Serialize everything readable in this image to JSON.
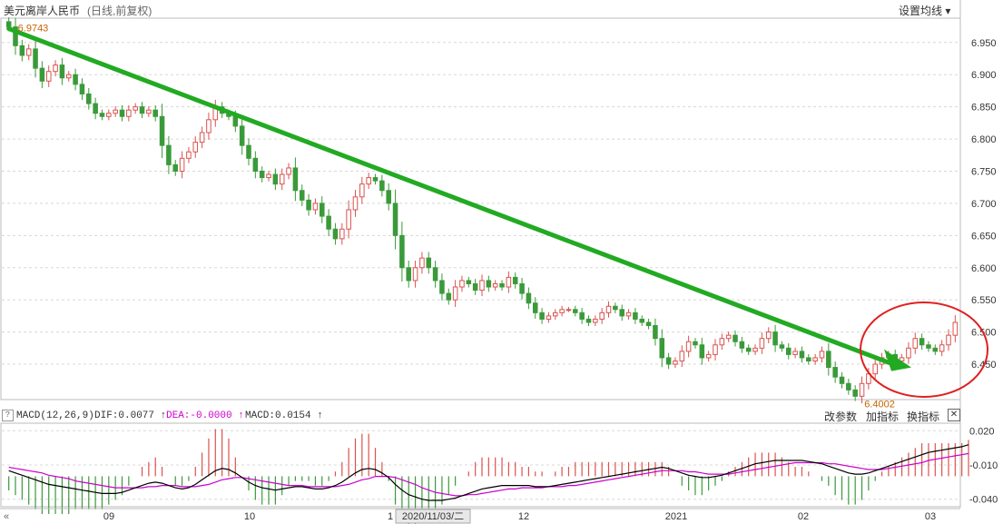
{
  "header": {
    "title": "美元离岸人民币",
    "subtitle": "(日线,前复权)",
    "ma_setting": "设置均线 ▾"
  },
  "macd_bar": {
    "help": "?",
    "label": "MACD(12,26,9)",
    "dif": "DIF:0.0077 ↑",
    "dea": "DEA:-0.0000 ↑",
    "macd": "MACD:0.0154 ↑",
    "btn_params": "改参数",
    "btn_add": "加指标",
    "btn_switch": "换指标",
    "btn_close": "✕"
  },
  "colors": {
    "up": "#d9534f",
    "down": "#3a9a3a",
    "trend": "#22aa22",
    "circle": "#e02020",
    "dif": "#000000",
    "dea": "#cc00cc",
    "grid": "#d8d8d8"
  },
  "chart_data": [
    {
      "type": "candlestick",
      "title": "美元离岸人民币 (日线,前复权)",
      "y_axis_ticks": [
        "6.950",
        "6.900",
        "6.850",
        "6.800",
        "6.750",
        "6.700",
        "6.650",
        "6.600",
        "6.550",
        "6.500",
        "6.450"
      ],
      "ylim": [
        6.395,
        6.985
      ],
      "x_axis_ticks": [
        "09",
        "10",
        "1",
        "12",
        "2021",
        "02",
        "03"
      ],
      "hover_date": "2020/11/03/二",
      "annotations": {
        "high": "6.9743",
        "low": "6.4002"
      },
      "grid": true,
      "points": [
        6.9743,
        6.945,
        6.93,
        6.94,
        6.91,
        6.89,
        6.905,
        6.915,
        6.895,
        6.9,
        6.885,
        6.87,
        6.855,
        6.84,
        6.835,
        6.84,
        6.845,
        6.835,
        6.845,
        6.85,
        6.84,
        6.845,
        6.835,
        6.79,
        6.76,
        6.75,
        6.77,
        6.78,
        6.795,
        6.81,
        6.83,
        6.85,
        6.84,
        6.835,
        6.82,
        6.79,
        6.77,
        6.75,
        6.74,
        6.745,
        6.73,
        6.745,
        6.755,
        6.72,
        6.705,
        6.69,
        6.7,
        6.68,
        6.66,
        6.645,
        6.66,
        6.69,
        6.71,
        6.73,
        6.74,
        6.735,
        6.72,
        6.7,
        6.65,
        6.6,
        6.58,
        6.6,
        6.615,
        6.6,
        6.58,
        6.56,
        6.55,
        6.57,
        6.58,
        6.575,
        6.565,
        6.58,
        6.57,
        6.575,
        6.57,
        6.585,
        6.575,
        6.56,
        6.545,
        6.53,
        6.52,
        6.525,
        6.53,
        6.535,
        6.535,
        6.53,
        6.52,
        6.515,
        6.52,
        6.53,
        6.54,
        6.535,
        6.525,
        6.53,
        6.52,
        6.515,
        6.51,
        6.49,
        6.46,
        6.45,
        6.455,
        6.47,
        6.485,
        6.48,
        6.46,
        6.465,
        6.48,
        6.49,
        6.495,
        6.485,
        6.475,
        6.47,
        6.475,
        6.49,
        6.5,
        6.48,
        6.475,
        6.465,
        6.47,
        6.46,
        6.455,
        6.46,
        6.47,
        6.445,
        6.43,
        6.42,
        6.41,
        6.4002,
        6.42,
        6.435,
        6.45,
        6.46,
        6.465,
        6.455,
        6.46,
        6.475,
        6.49,
        6.48,
        6.475,
        6.47,
        6.48,
        6.495,
        6.515
      ]
    },
    {
      "type": "macd",
      "y_axis_ticks": [
        "0.020",
        "-0.010",
        "-0.040"
      ],
      "ylim": [
        -0.045,
        0.025
      ],
      "series": [
        {
          "name": "DIF",
          "values": [
            -0.015,
            -0.017,
            -0.019,
            -0.021,
            -0.023,
            -0.025,
            -0.027,
            -0.028,
            -0.029,
            -0.03,
            -0.031,
            -0.032,
            -0.033,
            -0.034,
            -0.035,
            -0.035,
            -0.035,
            -0.034,
            -0.032,
            -0.03,
            -0.028,
            -0.026,
            -0.025,
            -0.026,
            -0.028,
            -0.03,
            -0.031,
            -0.03,
            -0.027,
            -0.023,
            -0.019,
            -0.015,
            -0.013,
            -0.014,
            -0.017,
            -0.021,
            -0.025,
            -0.028,
            -0.03,
            -0.031,
            -0.032,
            -0.031,
            -0.03,
            -0.029,
            -0.029,
            -0.03,
            -0.031,
            -0.031,
            -0.03,
            -0.028,
            -0.025,
            -0.021,
            -0.017,
            -0.014,
            -0.013,
            -0.014,
            -0.017,
            -0.021,
            -0.027,
            -0.032,
            -0.036,
            -0.038,
            -0.04,
            -0.041,
            -0.041,
            -0.041,
            -0.04,
            -0.039,
            -0.037,
            -0.035,
            -0.033,
            -0.031,
            -0.03,
            -0.029,
            -0.028,
            -0.028,
            -0.028,
            -0.028,
            -0.028,
            -0.029,
            -0.029,
            -0.029,
            -0.028,
            -0.027,
            -0.026,
            -0.025,
            -0.024,
            -0.023,
            -0.022,
            -0.021,
            -0.02,
            -0.019,
            -0.018,
            -0.017,
            -0.016,
            -0.015,
            -0.014,
            -0.013,
            -0.012,
            -0.013,
            -0.015,
            -0.017,
            -0.019,
            -0.02,
            -0.021,
            -0.021,
            -0.02,
            -0.019,
            -0.017,
            -0.015,
            -0.013,
            -0.011,
            -0.009,
            -0.008,
            -0.007,
            -0.006,
            -0.006,
            -0.006,
            -0.006,
            -0.006,
            -0.007,
            -0.008,
            -0.009,
            -0.011,
            -0.013,
            -0.015,
            -0.017,
            -0.018,
            -0.018,
            -0.017,
            -0.015,
            -0.013,
            -0.011,
            -0.009,
            -0.007,
            -0.005,
            -0.003,
            -0.001,
            0.001,
            0.002,
            0.003,
            0.004,
            0.005,
            0.006,
            0.0077
          ]
        },
        {
          "name": "DEA",
          "values": [
            -0.012,
            -0.013,
            -0.014,
            -0.015,
            -0.016,
            -0.017,
            -0.019,
            -0.02,
            -0.021,
            -0.022,
            -0.024,
            -0.025,
            -0.026,
            -0.027,
            -0.028,
            -0.029,
            -0.03,
            -0.03,
            -0.03,
            -0.03,
            -0.03,
            -0.029,
            -0.029,
            -0.028,
            -0.028,
            -0.028,
            -0.029,
            -0.029,
            -0.029,
            -0.028,
            -0.027,
            -0.025,
            -0.023,
            -0.022,
            -0.021,
            -0.021,
            -0.022,
            -0.023,
            -0.024,
            -0.025,
            -0.026,
            -0.027,
            -0.028,
            -0.028,
            -0.028,
            -0.029,
            -0.029,
            -0.029,
            -0.029,
            -0.029,
            -0.028,
            -0.027,
            -0.025,
            -0.023,
            -0.022,
            -0.02,
            -0.02,
            -0.02,
            -0.021,
            -0.023,
            -0.025,
            -0.027,
            -0.03,
            -0.032,
            -0.034,
            -0.035,
            -0.036,
            -0.037,
            -0.037,
            -0.036,
            -0.036,
            -0.035,
            -0.034,
            -0.033,
            -0.032,
            -0.031,
            -0.031,
            -0.03,
            -0.03,
            -0.03,
            -0.03,
            -0.029,
            -0.029,
            -0.029,
            -0.028,
            -0.028,
            -0.027,
            -0.026,
            -0.025,
            -0.024,
            -0.023,
            -0.022,
            -0.021,
            -0.02,
            -0.019,
            -0.018,
            -0.017,
            -0.016,
            -0.015,
            -0.015,
            -0.015,
            -0.015,
            -0.016,
            -0.016,
            -0.017,
            -0.018,
            -0.018,
            -0.018,
            -0.018,
            -0.017,
            -0.016,
            -0.015,
            -0.014,
            -0.013,
            -0.012,
            -0.011,
            -0.01,
            -0.009,
            -0.008,
            -0.008,
            -0.008,
            -0.008,
            -0.008,
            -0.009,
            -0.009,
            -0.01,
            -0.011,
            -0.012,
            -0.013,
            -0.014,
            -0.014,
            -0.014,
            -0.013,
            -0.012,
            -0.011,
            -0.01,
            -0.009,
            -0.008,
            -0.006,
            -0.005,
            -0.004,
            -0.003,
            -0.002,
            -0.001,
            0.0
          ]
        }
      ]
    }
  ]
}
